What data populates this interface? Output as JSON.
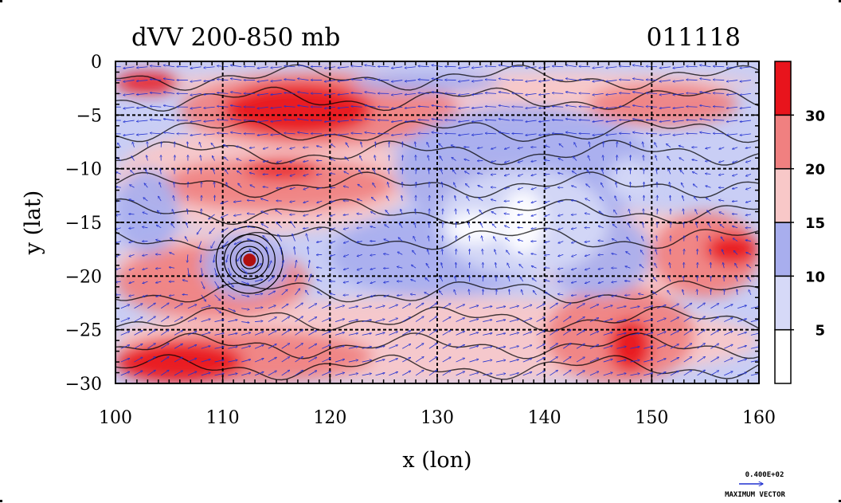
{
  "chart_data": {
    "type": "heatmap",
    "title": "dVV 200-850 mb",
    "date_label": "011118",
    "xlabel": "x (lon)",
    "ylabel": "y (lat)",
    "xlim": [
      100,
      160
    ],
    "ylim": [
      -30,
      0
    ],
    "x_ticks": [
      100,
      110,
      120,
      130,
      140,
      150,
      160
    ],
    "y_ticks": [
      0,
      -5,
      -10,
      -15,
      -20,
      -25,
      -30
    ],
    "x_tick_labels": [
      "100",
      "110",
      "120",
      "130",
      "140",
      "150",
      "160"
    ],
    "y_tick_labels": [
      "0",
      "−5",
      "−10",
      "−15",
      "−20",
      "−25",
      "−30"
    ],
    "grid": true,
    "grid_style": "dashed",
    "overlay": "wind vectors",
    "colorbar": {
      "levels": [
        5,
        10,
        15,
        20,
        30
      ],
      "tick_labels": [
        "5",
        "10",
        "15",
        "20",
        "30"
      ],
      "colors": [
        "#ffffff",
        "#d6d9f7",
        "#a8aeee",
        "#f8c8c8",
        "#f08080",
        "#e8141c"
      ]
    },
    "reference_vector": {
      "value_label": "0.400E+02",
      "caption": "MAXIMUM VECTOR"
    },
    "field_summary": [
      {
        "lon_range": [
          110,
          125
        ],
        "lat_range": [
          -8,
          -2
        ],
        "level": "30+"
      },
      {
        "lon_range": [
          112,
          120
        ],
        "lat_range": [
          -12,
          -9
        ],
        "level": "30+"
      },
      {
        "lon_range": [
          100,
          110
        ],
        "lat_range": [
          -30,
          -25
        ],
        "level": "30+"
      },
      {
        "lon_range": [
          146,
          150
        ],
        "lat_range": [
          -29,
          -24
        ],
        "level": "30+"
      },
      {
        "lon_range": [
          154,
          160
        ],
        "lat_range": [
          -20,
          -15
        ],
        "level": "30+"
      },
      {
        "lon_range": [
          128,
          145
        ],
        "lat_range": [
          -20,
          -10
        ],
        "level": "0-10"
      },
      {
        "lon_range": [
          110,
          114
        ],
        "lat_range": [
          -20,
          -17
        ],
        "level": "vortex"
      }
    ]
  }
}
